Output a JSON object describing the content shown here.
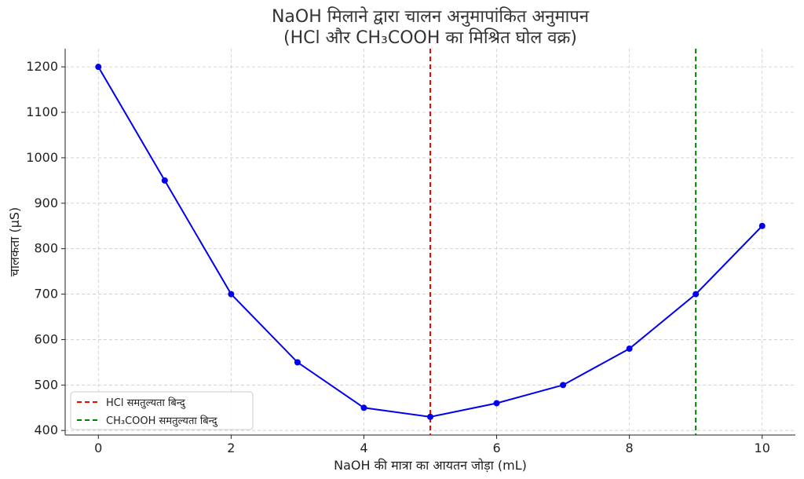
{
  "chart_data": {
    "type": "line",
    "title_line1": "NaOH मिलाने द्वारा चालन अनुमापांकित अनुमापन",
    "title_line2": "(HCl और CH₃COOH का मिश्रित घोल वक्र)",
    "xlabel": "NaOH की मात्रा का आयतन जोड़ा (mL)",
    "ylabel": "चालकता (µS)",
    "x": [
      0,
      1,
      2,
      3,
      4,
      5,
      6,
      7,
      8,
      9,
      10
    ],
    "xlim": [
      -0.5,
      10.5
    ],
    "ylim": [
      390,
      1240
    ],
    "xticks": [
      0,
      2,
      4,
      6,
      8,
      10
    ],
    "yticks": [
      400,
      500,
      600,
      700,
      800,
      900,
      1000,
      1100,
      1200
    ],
    "grid": true,
    "legend_position": "bottom-left",
    "series": [
      {
        "values": [
          1200,
          950,
          700,
          550,
          450,
          430,
          460,
          500,
          580,
          700,
          850
        ],
        "color": "#0000ee"
      }
    ],
    "reference_lines": [
      {
        "x": 5,
        "label": "HCl समतुल्यता बिन्दु",
        "color": "#ff0000"
      },
      {
        "x": 9,
        "label": "CH₃COOH समतुल्यता बिन्दु",
        "color": "#008000"
      }
    ]
  }
}
